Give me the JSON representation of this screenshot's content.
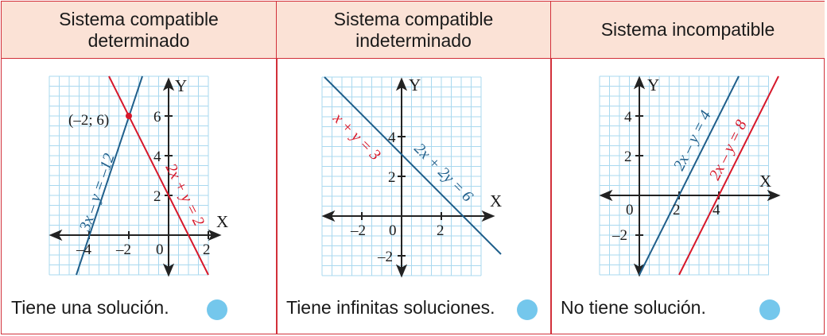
{
  "panels": [
    {
      "title": "Sistema compatible\ndeterminado",
      "caption": "Tiene una solución.",
      "axis_x": "X",
      "axis_y": "Y",
      "ticks_x": [
        "–4",
        "–2",
        "0",
        "2"
      ],
      "ticks_y": [
        "2",
        "4",
        "6"
      ],
      "point_label": "(–2; 6)",
      "lines": [
        {
          "equation": "3x – y = –12",
          "color": "#1f5f8b"
        },
        {
          "equation": "2x + y = 2",
          "color": "#d7182a"
        }
      ]
    },
    {
      "title": "Sistema compatible\nindeterminado",
      "caption": "Tiene infinitas soluciones.",
      "axis_x": "X",
      "axis_y": "Y",
      "ticks_x": [
        "–2",
        "0",
        "2"
      ],
      "ticks_y": [
        "2",
        "4",
        "–2"
      ],
      "lines": [
        {
          "equation": "x + y = 3",
          "color": "#d7182a"
        },
        {
          "equation": "2x + 2y = 6",
          "color": "#1f5f8b"
        }
      ]
    },
    {
      "title": "Sistema incompatible",
      "caption": "No tiene solución.",
      "axis_x": "X",
      "axis_y": "Y",
      "ticks_x": [
        "0",
        "2",
        "4"
      ],
      "ticks_y": [
        "2",
        "4",
        "–2"
      ],
      "lines": [
        {
          "equation": "2x – y = 4",
          "color": "#1f5f8b"
        },
        {
          "equation": "2x – y = 8",
          "color": "#d7182a"
        }
      ]
    }
  ],
  "colors": {
    "border": "#d2303a",
    "header_bg": "#fbe2d6",
    "grid": "#a9d8ef",
    "blue_line": "#1f5f8b",
    "red_line": "#d7182a",
    "marker": "#74c7ec"
  }
}
